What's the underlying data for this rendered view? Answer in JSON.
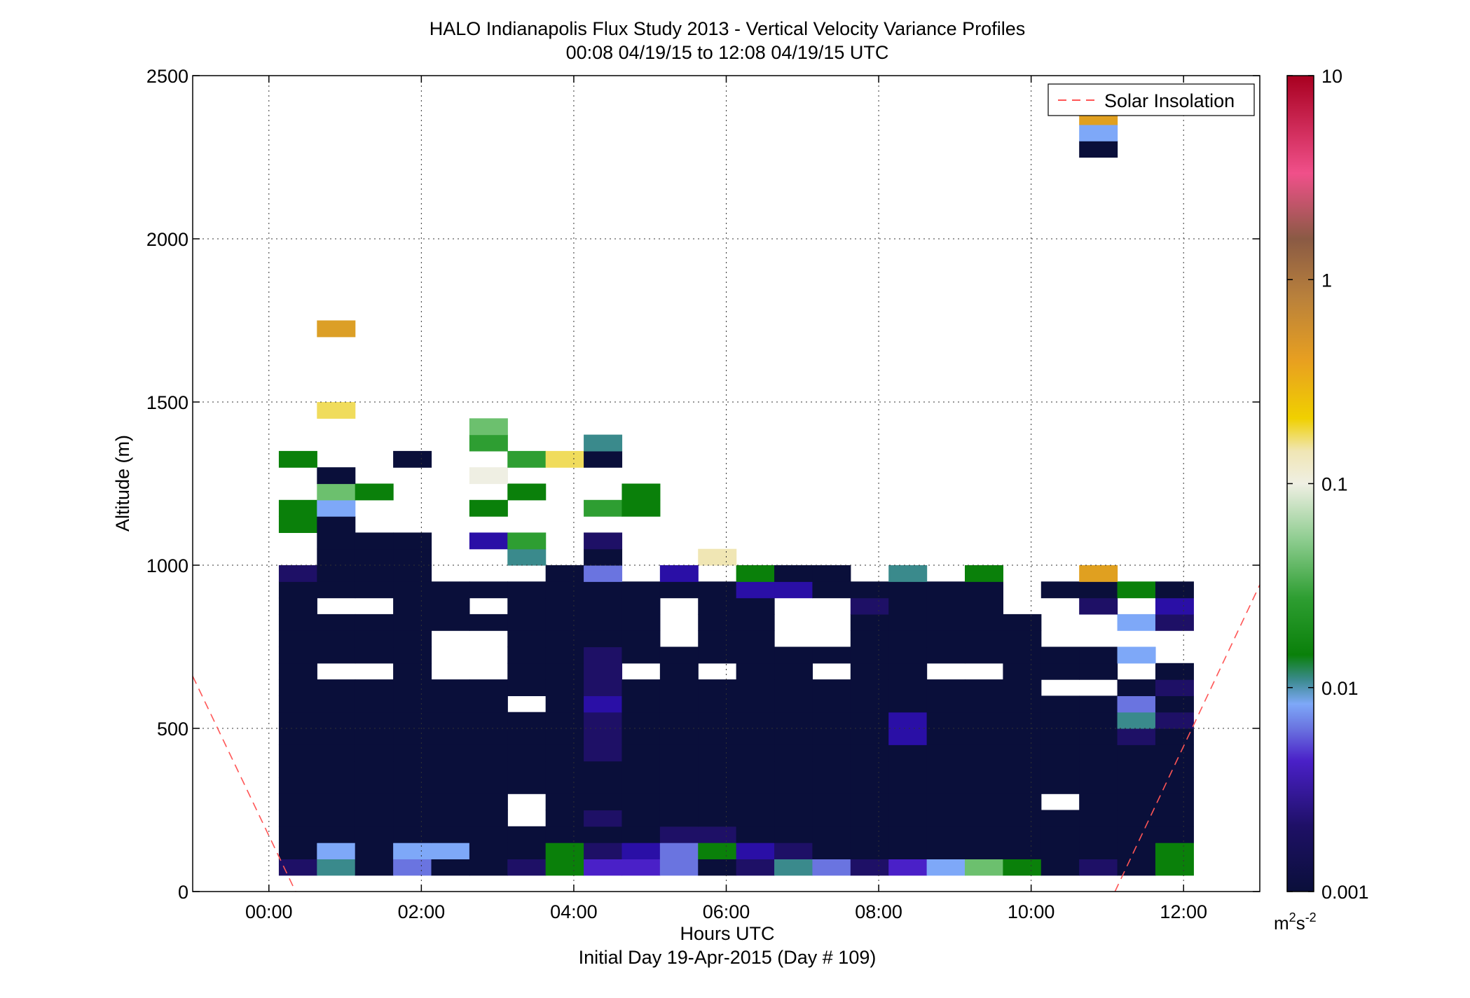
{
  "chart_data": {
    "type": "heatmap",
    "title": "HALO Indianapolis Flux Study 2013 - Vertical Velocity Variance Profiles",
    "subtitle": "00:08 04/19/15 to 12:08 04/19/15  UTC",
    "xlabel": "Hours UTC",
    "xlabel2": "Initial Day 19-Apr-2015 (Day # 109)",
    "ylabel": "Altitude (m)",
    "x_unit": "hours",
    "xlim": [
      -1.0,
      13.0
    ],
    "ylim": [
      0,
      2500
    ],
    "x_ticks": [
      0,
      2,
      4,
      6,
      8,
      10,
      12
    ],
    "x_tick_labels": [
      "00:00",
      "02:00",
      "04:00",
      "06:00",
      "08:00",
      "10:00",
      "12:00"
    ],
    "y_ticks": [
      0,
      500,
      1000,
      1500,
      2000,
      2500
    ],
    "y_tick_labels": [
      "0",
      "500",
      "1000",
      "1500",
      "2000",
      "2500"
    ],
    "grid": true,
    "legend": {
      "label": "Solar Insolation",
      "placement": "top-right",
      "color": "#ff5555",
      "style": "dashed"
    },
    "colorbar": {
      "scale": "log",
      "limits": [
        0.001,
        10
      ],
      "tick_values": [
        0.001,
        0.01,
        0.1,
        1,
        10
      ],
      "tick_labels": [
        "0.001",
        "0.01",
        "0.1",
        "1",
        "10"
      ],
      "unit_base": "m",
      "unit_exp1": "2",
      "unit_mid": "s",
      "unit_exp2": "-2"
    },
    "columns_start_hours": [
      0.13,
      0.63,
      1.13,
      1.63,
      2.13,
      2.63,
      3.13,
      3.63,
      4.13,
      4.63,
      5.13,
      5.63,
      6.13,
      6.63,
      7.13,
      7.63,
      8.13,
      8.63,
      9.13,
      9.63,
      10.13,
      10.63,
      11.13,
      11.63
    ],
    "column_width_hours": 0.5,
    "rows_bottom_m": [
      50,
      100,
      150,
      200,
      250,
      300,
      350,
      400,
      450,
      500,
      550,
      600,
      650,
      700,
      750,
      800,
      850,
      900,
      950,
      1000,
      1050,
      1100,
      1150,
      1200,
      1250,
      1300,
      1350,
      1400,
      1450,
      1500,
      1550,
      1600,
      1650,
      1700,
      1750,
      1800,
      1850,
      1900,
      1950,
      2000,
      2050,
      2100,
      2150,
      2200,
      2250,
      2300,
      2350
    ],
    "row_height_m": 50,
    "palette_codes": {
      "N": "#0a0f3a",
      "D": "#1e1066",
      "P": "#2a0fa6",
      "I": "#4a20c8",
      "L": "#6a74e0",
      "B": "#7ea8f8",
      "T": "#3a8a8c",
      "G": "#0a800a",
      "M": "#2e9e32",
      "A": "#6cc06e",
      "W": "#d4ecd6",
      "C": "#efefe3",
      "Y": "#f0dc5c",
      "O": "#e0a020",
      "K": "#dc9f26",
      "S": "#aaaaaa",
      "H": "#f0e6b4"
    },
    "variance_rows": [
      "DTNLNNDGIILNDTLDIBAGNDNG",
      "NBNBBNNGDPLGPDNNNNNNNNNG",
      "NNNNNNNNNNDDNNNNNNNNNNNN",
      "NNNNNNWNDNNNNNNNNNNNNNNN",
      "NNNNNNWNNNNNNNNNNNNNWNNN",
      "NNNNNNNNNNNNNNNNNNNNNNNN",
      "NNNNNNNNNNNNNNNNNNNNNNNN",
      "NNNNNNNNDNNNNNNNNNNNNNNN",
      "NNNNNNNNDNNNNNNNPNNNNNDN",
      "NNNNNNNNDNNNNNNNPNNNNNTD",
      "NNNNNNWNPNNNNNNNNNNNNNLN",
      "NNNNNNNNDNNNNNNNNNNNWWND",
      "NWWNWWNNDWNWNNWNNWWNNNWN",
      "NNNNWWNNDNNNNNNNNNNNNNBW",
      "NNNNWWNNNNWNNWWNNNNNWWWW",
      "NNNNNNNNNNWNNWWNNNNNWWBD",
      "NWWNNWNNNNWNNWWDNNNWWDWP",
      "NNNNNNNNNNNNPPNNNNNWNNGN",
      "DNNNWWWNLWPWGNNWTWGWWOWW",
      "WNNNWWTWNWWHWWWWWWWWWWWW",
      "WNNNWPMWDWWWWWWWWWWWWWWW",
      "GNWWWWWWWWWWWWWWWWWWWWWW",
      "GBWWWGWWMGWWWWWWWWWWWWWW",
      "WAGWWWGWWGWWWWWWWWWWWWWW",
      "WNWWWCWWWWWWWWWWWWWWWWWW",
      "GWWNWWMYNWWWWWWWWWWWWWWW",
      "WWWWWMWWTWWWWWWWWWWWWWWW",
      "WWWWWAWWWWWWWWWWWWWWWWWW",
      "WYWWWWWWWWWWWWWWWWWWWWWW",
      "WWWWWWWWWWWWWWWWWWWWWWWW",
      "WWWWWWWWWWWWWWWWWWWWWWWW",
      "WWWWWWWWWWWWWWWWWWWWWWWW",
      "WWWWWWWWWWWWWWWWWWWWWWWW",
      "WKWWWWWWWWWWWWWWWWWWWWWW",
      "WWWWWWWWWWWWWWWWWWWWWWWW",
      "WWWWWWWWWWWWWWWWWWWWWWWW",
      "WWWWWWWWWWWWWWWWWWWWWWWW",
      "WWWWWWWWWWWWWWWWWWWWWWWW",
      "WWWWWWWWWWWWWWWWWWWWWWWW",
      "WWWWWWWWWWWWWWWWWWWWWWWW",
      "WWWWWWWWWWWWWWWWWWWWWWWW",
      "WWWWWWWWWWWWWWWWWWWWWWWW",
      "WWWWWWWWWWWWWWWWWWWWWWWW",
      "WWWWWWWWWWWWWWWWWWWWWWWW",
      "WWWWWWWWWWWWWWWWWWWWWNWW",
      "WWWWWWWWWWWWWWWWWWWWWBWW",
      "WWWWWWWWWWWWWWWWWWWWWOWW"
    ],
    "variance_rows_note_blank_code": "W",
    "solar_insolation_lines": [
      {
        "x": [
          -1.0,
          0.35
        ],
        "y": [
          660,
          0
        ]
      },
      {
        "x": [
          11.1,
          13.0
        ],
        "y": [
          0,
          940
        ]
      }
    ]
  }
}
